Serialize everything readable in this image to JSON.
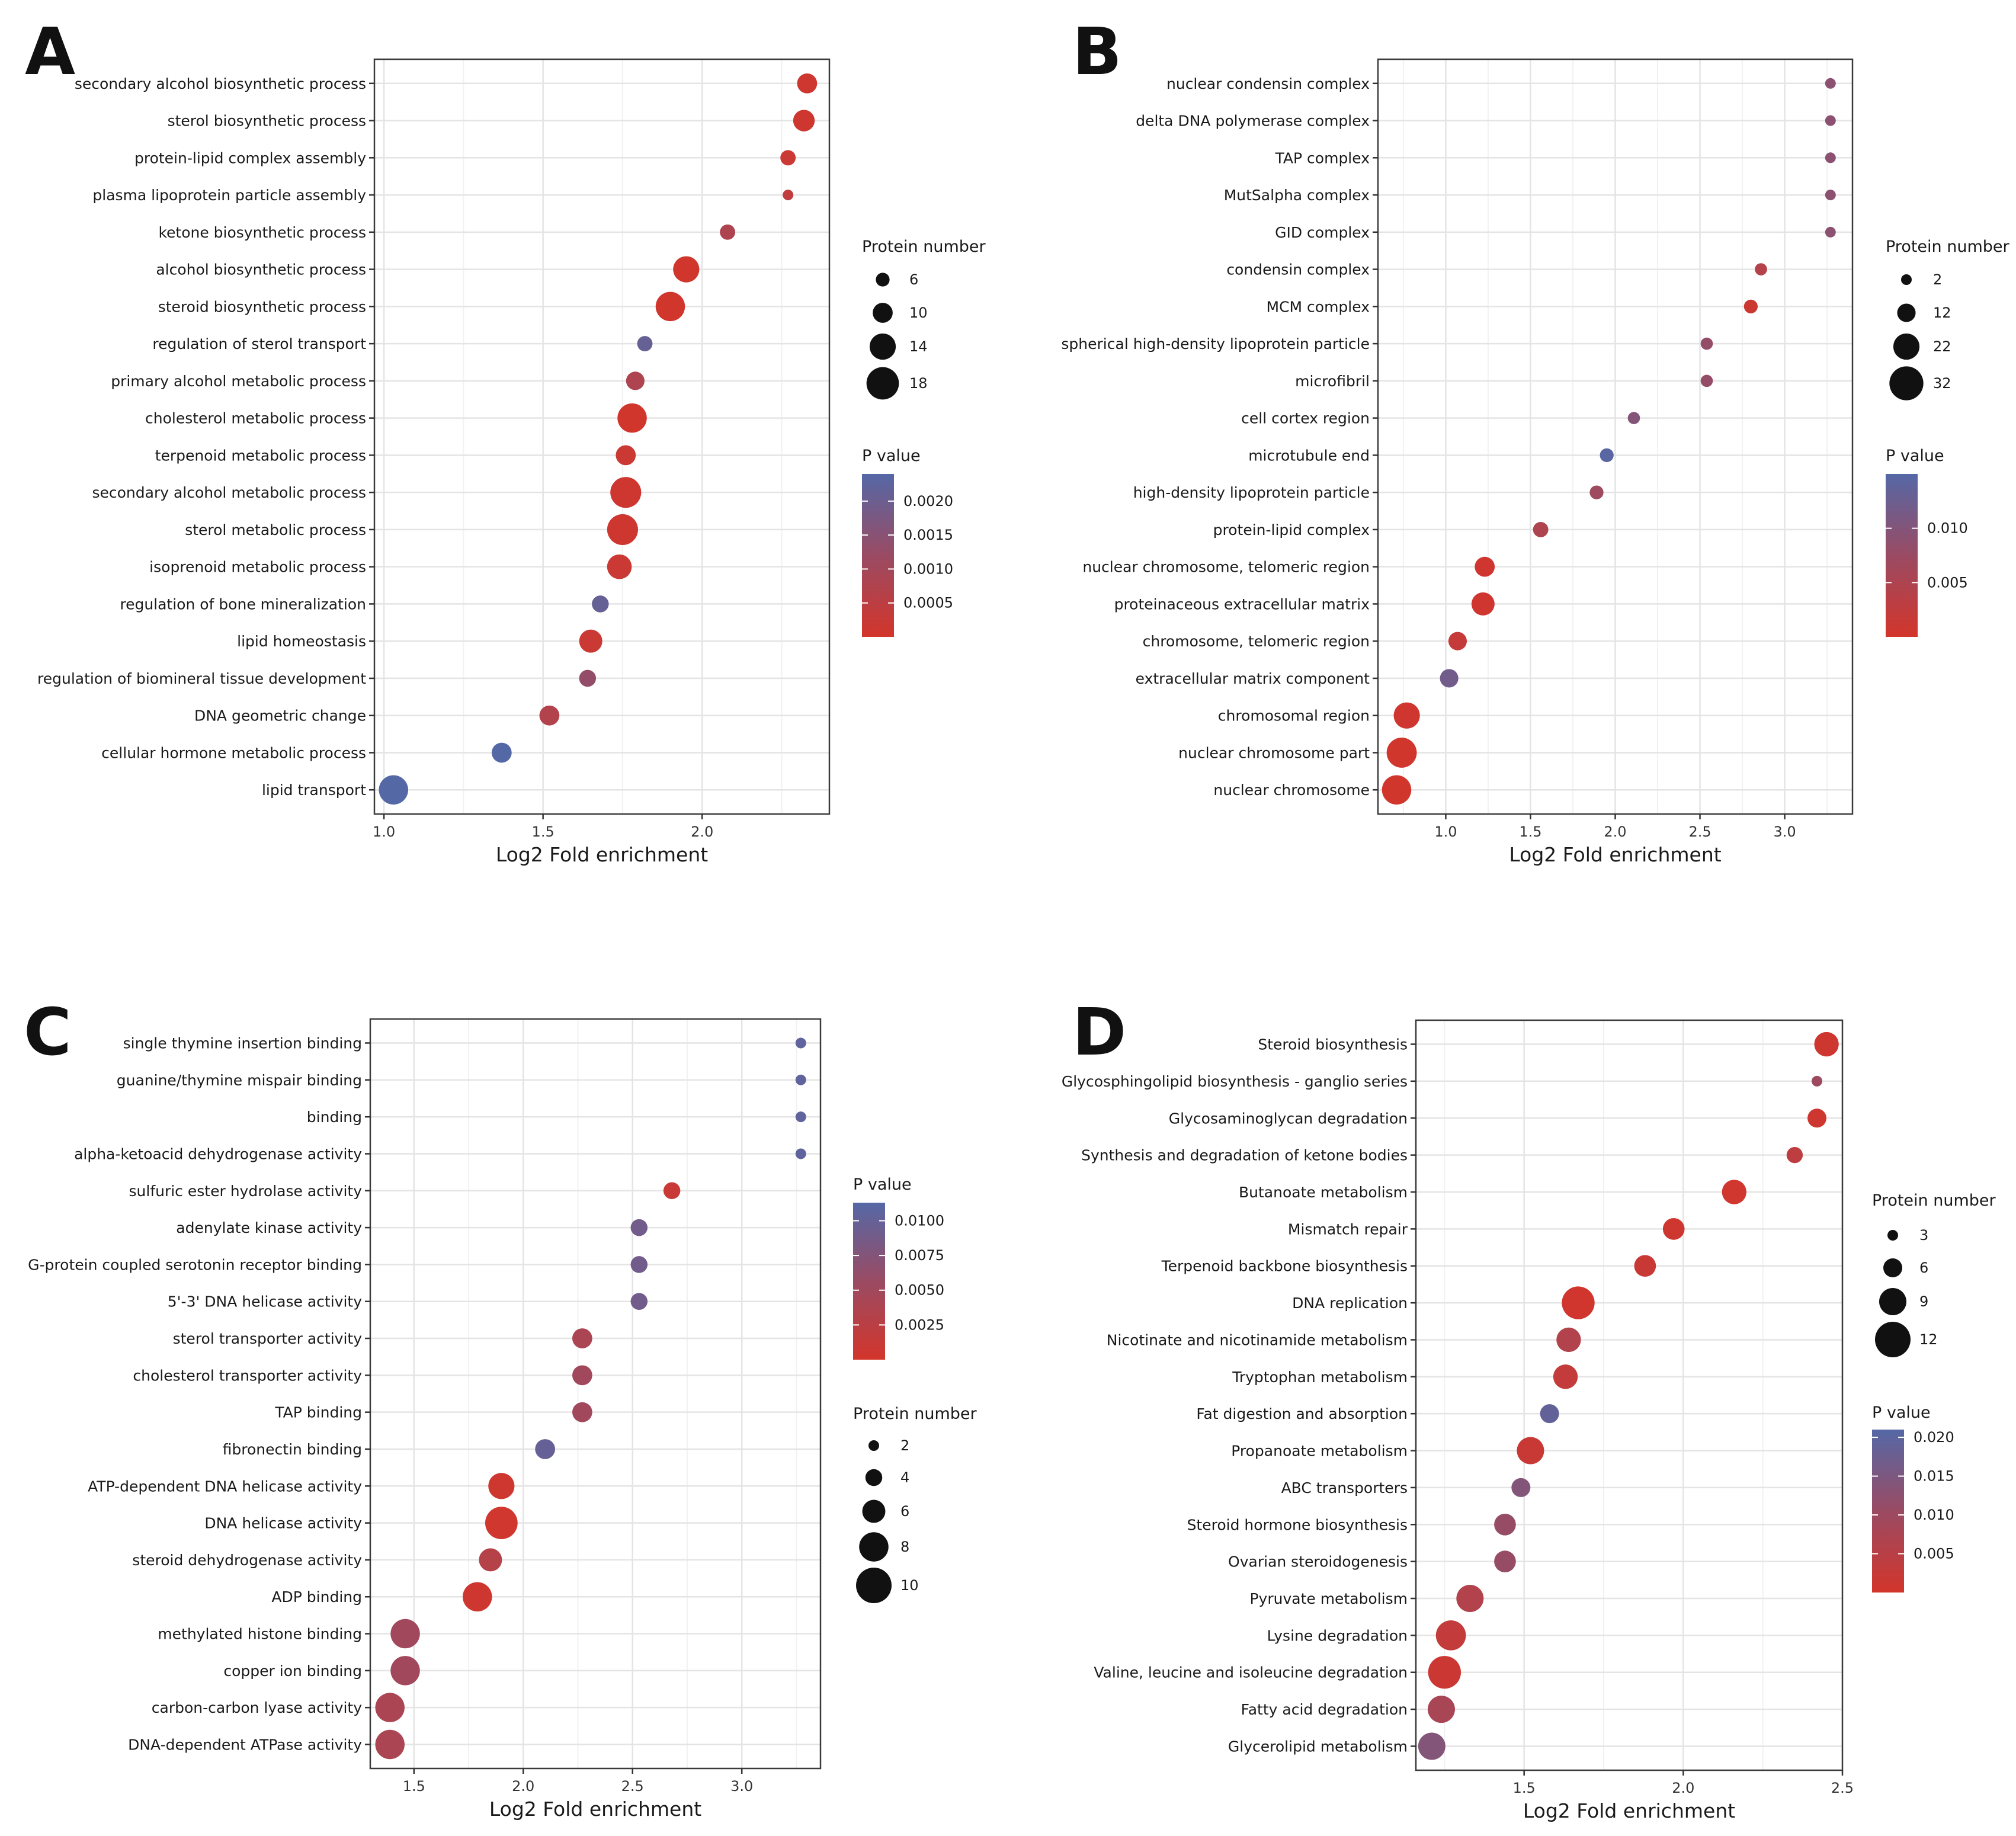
{
  "chart_data": [
    {
      "type": "scatter",
      "panel": "A",
      "xlabel": "Log2 Fold enrichment",
      "xlim": [
        0.97,
        2.4
      ],
      "xticks": [
        1.0,
        1.5,
        2.0
      ],
      "xtick_labels": [
        "1.0",
        "1.5",
        "2.0"
      ],
      "size_legend_title": "Protein number",
      "size_legend": [
        6,
        10,
        14,
        18
      ],
      "size_legend_labels": [
        "6",
        "10",
        "14",
        "18"
      ],
      "size_range": [
        4,
        20
      ],
      "color_legend_title": "P value",
      "color_range": [
        0,
        0.0024
      ],
      "color_ticks": [
        0.0005,
        0.001,
        0.0015,
        0.002
      ],
      "color_tick_labels": [
        "0.0005",
        "0.0010",
        "0.0015",
        "0.0020"
      ],
      "categories": [
        "secondary alcohol biosynthetic process",
        "sterol biosynthetic process",
        "protein-lipid complex assembly",
        "plasma lipoprotein particle assembly",
        "ketone biosynthetic process",
        "alcohol biosynthetic process",
        "steroid biosynthetic process",
        "regulation of sterol transport",
        "primary alcohol metabolic process",
        "cholesterol metabolic process",
        "terpenoid metabolic process",
        "secondary alcohol metabolic process",
        "sterol metabolic process",
        "isoprenoid metabolic process",
        "regulation of bone mineralization",
        "lipid homeostasis",
        "regulation of biomineral tissue development",
        "DNA geometric change",
        "cellular hormone metabolic process",
        "lipid transport"
      ],
      "x": [
        2.33,
        2.32,
        2.27,
        2.27,
        2.08,
        1.95,
        1.9,
        1.82,
        1.79,
        1.78,
        1.76,
        1.76,
        1.75,
        1.74,
        1.68,
        1.65,
        1.64,
        1.52,
        1.37,
        1.03
      ],
      "size": [
        10,
        11,
        7,
        4,
        7,
        14,
        16,
        7,
        9,
        16,
        10,
        17,
        17,
        13,
        8,
        12,
        8,
        10,
        10,
        16
      ],
      "pvalue": [
        0.0001,
        0.0001,
        0.0002,
        0.0004,
        0.0008,
        5e-05,
        5e-05,
        0.0021,
        0.0008,
        5e-05,
        0.0002,
        0.0001,
        0.0001,
        0.0002,
        0.0021,
        0.0002,
        0.0013,
        0.0007,
        0.0024,
        0.0024
      ]
    },
    {
      "type": "scatter",
      "panel": "B",
      "xlabel": "Log2 Fold enrichment",
      "xlim": [
        0.6,
        3.4
      ],
      "xticks": [
        1.0,
        1.5,
        2.0,
        2.5,
        3.0
      ],
      "xtick_labels": [
        "1.0",
        "1.5",
        "2.0",
        "2.5",
        "3.0"
      ],
      "size_legend_title": "Protein number",
      "size_legend": [
        2,
        12,
        22,
        32
      ],
      "size_legend_labels": [
        "2",
        "12",
        "22",
        "32"
      ],
      "size_range": [
        2,
        34
      ],
      "color_legend_title": "P value",
      "color_range": [
        0,
        0.015
      ],
      "color_ticks": [
        0.005,
        0.01
      ],
      "color_tick_labels": [
        "0.005",
        "0.010"
      ],
      "categories": [
        "nuclear condensin complex",
        "delta DNA polymerase complex",
        "TAP complex",
        "MutSalpha complex",
        "GID complex",
        "condensin complex",
        "MCM complex",
        "spherical high-density lipoprotein particle",
        "microfibril",
        "cell cortex region",
        "microtubule end",
        "high-density lipoprotein particle",
        "protein-lipid complex",
        "nuclear chromosome, telomeric region",
        "proteinaceous extracellular matrix",
        "chromosome, telomeric region",
        "extracellular matrix component",
        "chromosomal region",
        "nuclear chromosome part",
        "nuclear chromosome"
      ],
      "x": [
        3.27,
        3.27,
        3.27,
        3.27,
        3.27,
        2.86,
        2.8,
        2.54,
        2.54,
        2.11,
        1.95,
        1.89,
        1.56,
        1.23,
        1.22,
        1.07,
        1.02,
        0.77,
        0.74,
        0.71
      ],
      "size": [
        2,
        2,
        2,
        2,
        2,
        4,
        6,
        4,
        4,
        4,
        6,
        6,
        8,
        14,
        18,
        12,
        12,
        22,
        27,
        26
      ],
      "pvalue": [
        0.009,
        0.009,
        0.009,
        0.009,
        0.009,
        0.004,
        0.001,
        0.008,
        0.008,
        0.01,
        0.0145,
        0.007,
        0.005,
        0.0005,
        0.0005,
        0.002,
        0.012,
        0.0005,
        0.0003,
        0.0003
      ]
    },
    {
      "type": "scatter",
      "panel": "C",
      "xlabel": "Log2 Fold enrichment",
      "xlim": [
        1.3,
        3.36
      ],
      "xticks": [
        1.5,
        2.0,
        2.5,
        3.0
      ],
      "xtick_labels": [
        "1.5",
        "2.0",
        "2.5",
        "3.0"
      ],
      "size_legend_title": "Protein number",
      "size_legend": [
        2,
        4,
        6,
        8,
        10
      ],
      "size_legend_labels": [
        "2",
        "4",
        "6",
        "8",
        "10"
      ],
      "size_range": [
        2,
        10
      ],
      "color_legend_title": "P value",
      "color_range": [
        0,
        0.0113
      ],
      "color_ticks": [
        0.0025,
        0.005,
        0.0075,
        0.01
      ],
      "color_tick_labels": [
        "0.0025",
        "0.0050",
        "0.0075",
        "0.0100"
      ],
      "categories": [
        "single thymine insertion binding",
        "guanine/thymine mispair binding",
        "binding",
        "alpha-ketoacid dehydrogenase activity",
        "sulfuric ester hydrolase activity",
        "adenylate kinase activity",
        "G-protein coupled serotonin receptor binding",
        "5'-3' DNA helicase activity",
        "sterol transporter activity",
        "cholesterol transporter activity",
        "TAP binding",
        "fibronectin binding",
        "ATP-dependent DNA helicase activity",
        "DNA helicase activity",
        "steroid dehydrogenase activity",
        "ADP binding",
        "methylated histone binding",
        "copper ion binding",
        "carbon-carbon lyase activity",
        "DNA-dependent ATPase activity"
      ],
      "x": [
        3.27,
        3.27,
        3.27,
        3.27,
        2.68,
        2.53,
        2.53,
        2.53,
        2.27,
        2.27,
        2.27,
        2.1,
        1.9,
        1.9,
        1.85,
        1.79,
        1.46,
        1.46,
        1.39,
        1.39
      ],
      "size": [
        2,
        2,
        2,
        2,
        4,
        4,
        4,
        4,
        5,
        5,
        5,
        5,
        7,
        9,
        6,
        8,
        8,
        8,
        8,
        8
      ],
      "pvalue": [
        0.0105,
        0.0105,
        0.0105,
        0.0105,
        0.001,
        0.009,
        0.009,
        0.009,
        0.004,
        0.005,
        0.005,
        0.01,
        0.0005,
        0.0004,
        0.003,
        0.0005,
        0.005,
        0.005,
        0.004,
        0.004
      ]
    },
    {
      "type": "scatter",
      "panel": "D",
      "xlabel": "Log2 Fold enrichment",
      "xlim": [
        1.16,
        2.5
      ],
      "xticks": [
        1.5,
        2.0,
        2.5
      ],
      "xtick_labels": [
        "1.5",
        "2.0",
        "2.5"
      ],
      "size_legend_title": "Protein number",
      "size_legend": [
        3,
        6,
        9,
        12
      ],
      "size_legend_labels": [
        "3",
        "6",
        "9",
        "12"
      ],
      "size_range": [
        3,
        12
      ],
      "color_legend_title": "P value",
      "color_range": [
        0,
        0.021
      ],
      "color_ticks": [
        0.005,
        0.01,
        0.015,
        0.02
      ],
      "color_tick_labels": [
        "0.005",
        "0.010",
        "0.015",
        "0.020"
      ],
      "categories": [
        "Steroid biosynthesis",
        "Glycosphingolipid biosynthesis - ganglio series",
        "Glycosaminoglycan degradation",
        "Synthesis and degradation of ketone bodies",
        "Butanoate metabolism",
        "Mismatch repair",
        "Terpenoid backbone biosynthesis",
        "DNA replication",
        "Nicotinate and nicotinamide metabolism",
        "Tryptophan metabolism",
        "Fat digestion and absorption",
        "Propanoate metabolism",
        "ABC transporters",
        "Steroid hormone biosynthesis",
        "Ovarian steroidogenesis",
        "Pyruvate metabolism",
        "Lysine degradation",
        "Valine, leucine and isoleucine degradation",
        "Fatty acid degradation",
        "Glycerolipid metabolism"
      ],
      "x": [
        2.45,
        2.42,
        2.42,
        2.35,
        2.16,
        1.97,
        1.88,
        1.67,
        1.64,
        1.63,
        1.58,
        1.52,
        1.49,
        1.44,
        1.44,
        1.33,
        1.27,
        1.25,
        1.24,
        1.21
      ],
      "size": [
        8,
        3,
        6,
        5,
        8,
        7,
        7,
        11,
        8,
        8,
        6,
        9,
        6,
        7,
        7,
        9,
        10,
        11,
        9,
        9
      ],
      "pvalue": [
        0.001,
        0.01,
        0.001,
        0.004,
        0.0008,
        0.001,
        0.002,
        0.0005,
        0.006,
        0.003,
        0.019,
        0.002,
        0.014,
        0.011,
        0.011,
        0.006,
        0.003,
        0.0015,
        0.008,
        0.014
      ]
    }
  ]
}
